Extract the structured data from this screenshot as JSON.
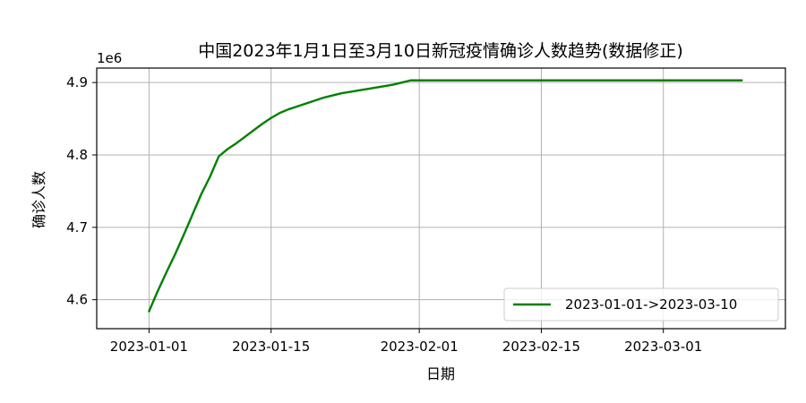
{
  "chart_data": {
    "type": "line",
    "title": "中国2023年1月1日至3月10日新冠疫情确诊人数趋势(数据修正)",
    "xlabel": "日期",
    "ylabel": "确诊人数",
    "y_offset_label": "1e6",
    "x_domain": [
      "2022-12-26",
      "2023-03-15"
    ],
    "ylim": [
      4.56,
      4.92
    ],
    "x_ticks": [
      {
        "date": "2023-01-01",
        "label": "2023-01-01"
      },
      {
        "date": "2023-01-15",
        "label": "2023-01-15"
      },
      {
        "date": "2023-02-01",
        "label": "2023-02-01"
      },
      {
        "date": "2023-02-15",
        "label": "2023-02-15"
      },
      {
        "date": "2023-03-01",
        "label": "2023-03-01"
      }
    ],
    "y_ticks": [
      {
        "value": 4.6,
        "label": "4.6"
      },
      {
        "value": 4.7,
        "label": "4.7"
      },
      {
        "value": 4.8,
        "label": "4.8"
      },
      {
        "value": 4.9,
        "label": "4.9"
      }
    ],
    "grid": true,
    "legend_position": "lower-right",
    "series": [
      {
        "name": "2023-01-01->2023-03-10",
        "color": "#008000",
        "points": [
          {
            "x": "2023-01-01",
            "y": 4.584
          },
          {
            "x": "2023-01-02",
            "y": 4.612
          },
          {
            "x": "2023-01-03",
            "y": 4.638
          },
          {
            "x": "2023-01-04",
            "y": 4.663
          },
          {
            "x": "2023-01-05",
            "y": 4.69
          },
          {
            "x": "2023-01-06",
            "y": 4.718
          },
          {
            "x": "2023-01-07",
            "y": 4.746
          },
          {
            "x": "2023-01-08",
            "y": 4.77
          },
          {
            "x": "2023-01-09",
            "y": 4.798
          },
          {
            "x": "2023-01-10",
            "y": 4.808
          },
          {
            "x": "2023-01-11",
            "y": 4.816
          },
          {
            "x": "2023-01-12",
            "y": 4.825
          },
          {
            "x": "2023-01-13",
            "y": 4.834
          },
          {
            "x": "2023-01-14",
            "y": 4.843
          },
          {
            "x": "2023-01-15",
            "y": 4.851
          },
          {
            "x": "2023-01-16",
            "y": 4.858
          },
          {
            "x": "2023-01-17",
            "y": 4.863
          },
          {
            "x": "2023-01-18",
            "y": 4.867
          },
          {
            "x": "2023-01-19",
            "y": 4.871
          },
          {
            "x": "2023-01-20",
            "y": 4.875
          },
          {
            "x": "2023-01-21",
            "y": 4.879
          },
          {
            "x": "2023-01-22",
            "y": 4.882
          },
          {
            "x": "2023-01-23",
            "y": 4.885
          },
          {
            "x": "2023-01-24",
            "y": 4.887
          },
          {
            "x": "2023-01-25",
            "y": 4.889
          },
          {
            "x": "2023-01-26",
            "y": 4.891
          },
          {
            "x": "2023-01-27",
            "y": 4.893
          },
          {
            "x": "2023-01-28",
            "y": 4.895
          },
          {
            "x": "2023-01-29",
            "y": 4.897
          },
          {
            "x": "2023-01-30",
            "y": 4.9
          },
          {
            "x": "2023-01-31",
            "y": 4.903
          },
          {
            "x": "2023-02-10",
            "y": 4.903
          },
          {
            "x": "2023-02-20",
            "y": 4.903
          },
          {
            "x": "2023-03-01",
            "y": 4.903
          },
          {
            "x": "2023-03-10",
            "y": 4.903
          }
        ]
      }
    ]
  }
}
